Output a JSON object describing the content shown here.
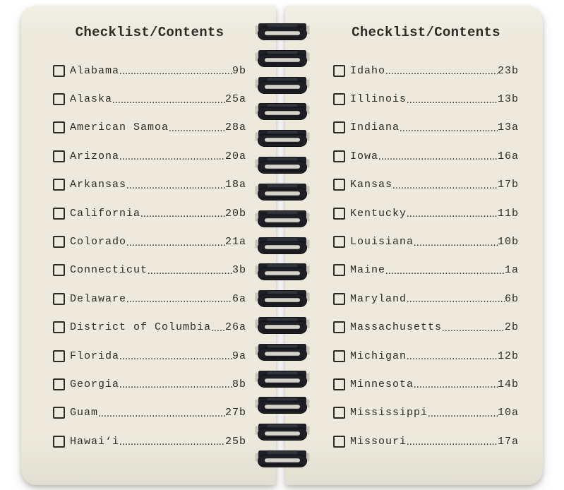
{
  "theme": {
    "paper_color": "#edeadd",
    "ink_color": "#2d2b26",
    "coil_body_color": "#1e2025",
    "coil_top_color": "#30333b",
    "coil_slot_color": "#d6d4ca",
    "coil_outline_color": "#101115",
    "punch_hole_color": "#c8c4b5",
    "background_color": "#ffffff"
  },
  "notebook": {
    "coil_count": 17,
    "dot_leader": "................................................................................................................",
    "pages": [
      {
        "title": "Checklist/Contents",
        "items": [
          {
            "label": "Alabama",
            "ref": "9b"
          },
          {
            "label": "Alaska",
            "ref": "25a"
          },
          {
            "label": "American Samoa",
            "ref": "28a"
          },
          {
            "label": "Arizona",
            "ref": "20a"
          },
          {
            "label": "Arkansas",
            "ref": "18a"
          },
          {
            "label": "California",
            "ref": "20b"
          },
          {
            "label": "Colorado",
            "ref": "21a"
          },
          {
            "label": "Connecticut",
            "ref": "3b"
          },
          {
            "label": "Delaware",
            "ref": "6a"
          },
          {
            "label": "District of Columbia",
            "ref": "26a"
          },
          {
            "label": "Florida",
            "ref": "9a"
          },
          {
            "label": "Georgia",
            "ref": "8b"
          },
          {
            "label": "Guam",
            "ref": "27b"
          },
          {
            "label": "Hawai‘i",
            "ref": "25b"
          }
        ]
      },
      {
        "title": "Checklist/Contents",
        "items": [
          {
            "label": "Idaho",
            "ref": "23b"
          },
          {
            "label": "Illinois",
            "ref": "13b"
          },
          {
            "label": "Indiana",
            "ref": "13a"
          },
          {
            "label": "Iowa",
            "ref": "16a"
          },
          {
            "label": "Kansas",
            "ref": "17b"
          },
          {
            "label": "Kentucky",
            "ref": "11b"
          },
          {
            "label": "Louisiana",
            "ref": "10b"
          },
          {
            "label": "Maine",
            "ref": "1a"
          },
          {
            "label": "Maryland",
            "ref": "6b"
          },
          {
            "label": "Massachusetts",
            "ref": "2b"
          },
          {
            "label": "Michigan",
            "ref": "12b"
          },
          {
            "label": "Minnesota",
            "ref": "14b"
          },
          {
            "label": "Mississippi",
            "ref": "10a"
          },
          {
            "label": "Missouri",
            "ref": "17a"
          }
        ]
      }
    ]
  }
}
